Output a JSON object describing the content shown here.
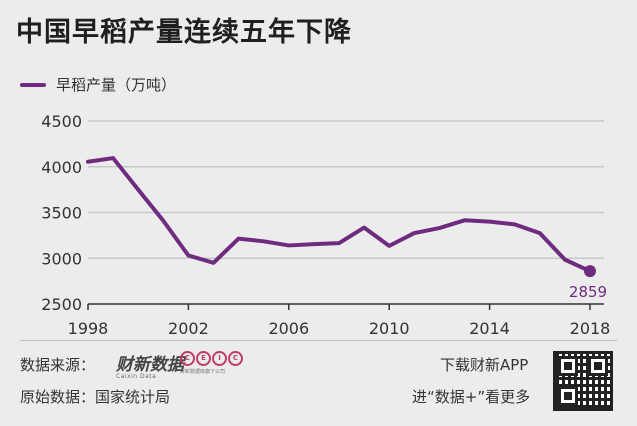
{
  "title": "中国早稻产量连续五年下降",
  "legend": {
    "label": "早稻产量（万吨）"
  },
  "chart_data": {
    "type": "line",
    "title": "中国早稻产量连续五年下降",
    "xlabel": "",
    "ylabel": "",
    "x": [
      1998,
      1999,
      2000,
      2001,
      2002,
      2003,
      2004,
      2005,
      2006,
      2007,
      2008,
      2009,
      2010,
      2011,
      2012,
      2013,
      2014,
      2015,
      2016,
      2017,
      2018
    ],
    "series": [
      {
        "name": "早稻产量（万吨）",
        "values": [
          4055,
          4095,
          3750,
          3410,
          3030,
          2950,
          3215,
          3185,
          3140,
          3155,
          3165,
          3335,
          3135,
          3275,
          3330,
          3415,
          3400,
          3370,
          3275,
          2985,
          2859
        ]
      }
    ],
    "xticks": [
      "1998",
      "2002",
      "2006",
      "2010",
      "2014",
      "2018"
    ],
    "yticks": [
      "2500",
      "3000",
      "3500",
      "4000",
      "4500"
    ],
    "ylim": [
      2500,
      4500
    ],
    "xlim": [
      1998,
      2018
    ],
    "annotation": "2859",
    "grid": true,
    "color": "#6e2b7f"
  },
  "footer": {
    "source_label": "数据来源：",
    "brand": "财新数据",
    "brand_sub": "Caixin Data",
    "ceic_letters": [
      "C",
      "E",
      "I",
      "C"
    ],
    "ceic_sub": "财新数据库旗下公司",
    "origin_label": "原始数据：国家统计局",
    "download": "下载财新APP",
    "more": "进“数据+”看更多"
  }
}
